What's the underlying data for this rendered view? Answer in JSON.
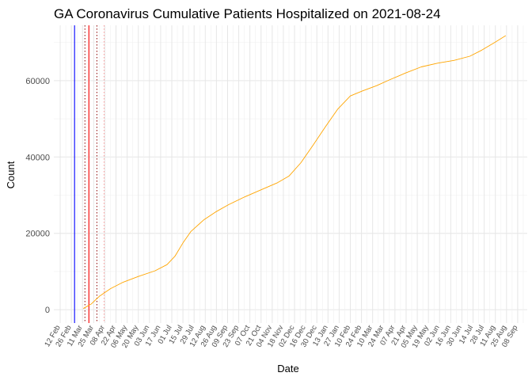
{
  "chart_data": {
    "type": "line",
    "title": "GA Coronavirus Cumulative Patients Hospitalized on 2021-08-24",
    "xlabel": "Date",
    "ylabel": "Count",
    "x_axis": {
      "type": "date",
      "domain": [
        "2020-02-04",
        "2021-09-20"
      ],
      "tick_interval_days": 7,
      "ticks_start": "2020-02-12",
      "ticks_end": "2021-09-15",
      "label_every": 2
    },
    "y_axis": {
      "ylim": [
        -3500,
        74500
      ],
      "ticks": [
        0,
        20000,
        40000,
        60000
      ]
    },
    "grid": true,
    "reference_lines": [
      {
        "date": "2020-03-01",
        "color": "#0000ff",
        "style": "solid"
      },
      {
        "date": "2020-03-14",
        "color": "#8b0000",
        "style": "dotted"
      },
      {
        "date": "2020-03-19",
        "color": "#ff0000",
        "style": "solid"
      },
      {
        "date": "2020-03-29",
        "color": "#8b0000",
        "style": "dotted"
      },
      {
        "date": "2020-04-07",
        "color": "#ff9999",
        "style": "dotted"
      }
    ],
    "series": [
      {
        "color": "#ffa500",
        "points": [
          [
            "2020-03-12",
            300
          ],
          [
            "2020-03-22",
            1500
          ],
          [
            "2020-04-01",
            3500
          ],
          [
            "2020-04-15",
            5500
          ],
          [
            "2020-05-01",
            7200
          ],
          [
            "2020-05-20",
            8700
          ],
          [
            "2020-06-10",
            10200
          ],
          [
            "2020-06-25",
            11800
          ],
          [
            "2020-07-05",
            14000
          ],
          [
            "2020-07-15",
            17500
          ],
          [
            "2020-07-25",
            20500
          ],
          [
            "2020-08-10",
            23500
          ],
          [
            "2020-08-25",
            25600
          ],
          [
            "2020-09-10",
            27500
          ],
          [
            "2020-09-30",
            29500
          ],
          [
            "2020-10-20",
            31300
          ],
          [
            "2020-11-10",
            33200
          ],
          [
            "2020-11-25",
            35000
          ],
          [
            "2020-12-10",
            38500
          ],
          [
            "2020-12-25",
            43000
          ],
          [
            "2021-01-10",
            48000
          ],
          [
            "2021-01-25",
            52500
          ],
          [
            "2021-02-10",
            56000
          ],
          [
            "2021-02-25",
            57300
          ],
          [
            "2021-03-15",
            58700
          ],
          [
            "2021-04-01",
            60300
          ],
          [
            "2021-04-20",
            62000
          ],
          [
            "2021-05-10",
            63600
          ],
          [
            "2021-05-31",
            64600
          ],
          [
            "2021-06-20",
            65300
          ],
          [
            "2021-07-10",
            66400
          ],
          [
            "2021-07-25",
            68000
          ],
          [
            "2021-08-10",
            70000
          ],
          [
            "2021-08-24",
            71800
          ]
        ]
      }
    ]
  }
}
